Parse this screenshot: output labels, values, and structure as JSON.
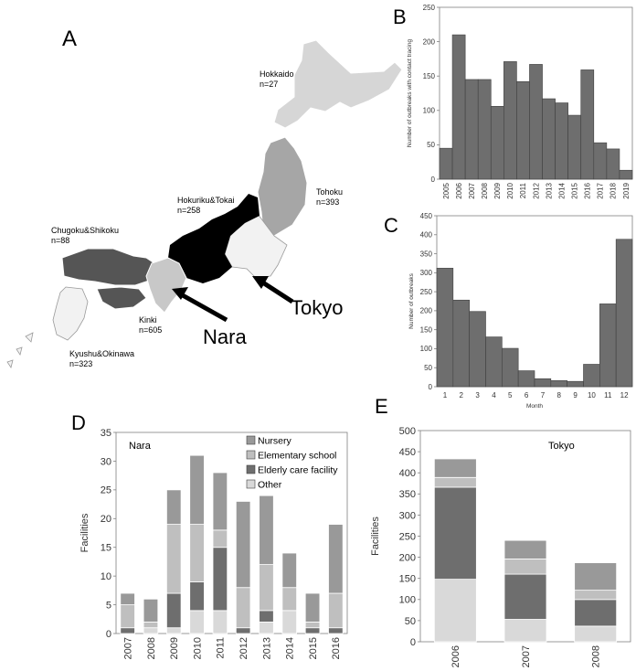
{
  "panels": {
    "A": "A",
    "B": "B",
    "C": "C",
    "D": "D",
    "E": "E"
  },
  "map": {
    "regions": [
      {
        "name": "Hokkaido",
        "count": "n=27",
        "color": "#d6d6d6"
      },
      {
        "name": "Tohoku",
        "count": "n=393",
        "color": "#a6a6a6"
      },
      {
        "name": "Hokuriku&Tokai",
        "count": "n=258",
        "color": "#000000"
      },
      {
        "name": "Chugoku&Shikoku",
        "count": "n=88",
        "color": "#555555"
      },
      {
        "name": "Kinki",
        "count": "n=605",
        "color": "#c8c8c8"
      },
      {
        "name": "Kyushu&Okinawa",
        "count": "n=323",
        "color": "#f2f2f2"
      },
      {
        "name": "Kanto",
        "count": "",
        "color": "#f2f2f2"
      }
    ],
    "callouts": {
      "nara": "Nara",
      "tokyo": "Tokyo"
    }
  },
  "chart_data": [
    {
      "id": "B",
      "type": "bar",
      "categories": [
        "2005",
        "2006",
        "2007",
        "2008",
        "2009",
        "2010",
        "2011",
        "2012",
        "2013",
        "2014",
        "2015",
        "2016",
        "2017",
        "2018",
        "2019"
      ],
      "values": [
        45,
        210,
        145,
        145,
        106,
        171,
        142,
        167,
        117,
        111,
        93,
        159,
        53,
        44,
        13
      ],
      "ylabel": "Number of outbreaks with contact tracing",
      "ylim": [
        0,
        250
      ],
      "yticks": [
        0,
        50,
        100,
        150,
        200,
        250
      ],
      "color": "#6e6e6e"
    },
    {
      "id": "C",
      "type": "bar",
      "categories": [
        "1",
        "2",
        "3",
        "4",
        "5",
        "6",
        "7",
        "8",
        "9",
        "10",
        "11",
        "12"
      ],
      "values": [
        312,
        228,
        198,
        131,
        101,
        42,
        21,
        16,
        14,
        59,
        218,
        388
      ],
      "xlabel": "Month",
      "ylabel": "Number of outbreaks",
      "ylim": [
        0,
        450
      ],
      "yticks": [
        0,
        50,
        100,
        150,
        200,
        250,
        300,
        350,
        400,
        450
      ],
      "color": "#6e6e6e"
    },
    {
      "id": "D",
      "type": "bar",
      "stacked": true,
      "title": "Nara",
      "categories": [
        "2007",
        "2008",
        "2009",
        "2010",
        "2011",
        "2012",
        "2013",
        "2014",
        "2015",
        "2016"
      ],
      "series": [
        {
          "name": "Other",
          "color": "#d9d9d9",
          "values": [
            0,
            1,
            1,
            4,
            4,
            0,
            2,
            4,
            0,
            0
          ]
        },
        {
          "name": "Elderly care facility",
          "color": "#6e6e6e",
          "values": [
            1,
            0,
            6,
            5,
            11,
            1,
            2,
            0,
            1,
            1
          ]
        },
        {
          "name": "Elementary school",
          "color": "#bfbfbf",
          "values": [
            4,
            1,
            12,
            10,
            3,
            7,
            8,
            4,
            1,
            6
          ]
        },
        {
          "name": "Nursery",
          "color": "#999999",
          "values": [
            2,
            4,
            6,
            12,
            10,
            15,
            12,
            6,
            5,
            12
          ]
        }
      ],
      "legend_order": [
        "Nursery",
        "Elementary school",
        "Elderly care facility",
        "Other"
      ],
      "ylabel": "Facilities",
      "ylim": [
        0,
        35
      ],
      "yticks": [
        0,
        5,
        10,
        15,
        20,
        25,
        30,
        35
      ]
    },
    {
      "id": "E",
      "type": "bar",
      "stacked": true,
      "title": "Tokyo",
      "categories": [
        "2006",
        "2007",
        "2008"
      ],
      "series": [
        {
          "name": "Other",
          "color": "#d9d9d9",
          "values": [
            148,
            53,
            37
          ]
        },
        {
          "name": "Elderly care facility",
          "color": "#6e6e6e",
          "values": [
            218,
            107,
            63
          ]
        },
        {
          "name": "Elementary school",
          "color": "#bfbfbf",
          "values": [
            23,
            36,
            22
          ]
        },
        {
          "name": "Nursery",
          "color": "#999999",
          "values": [
            44,
            44,
            65
          ]
        }
      ],
      "ylabel": "Facilities",
      "ylim": [
        0,
        500
      ],
      "yticks": [
        0,
        50,
        100,
        150,
        200,
        250,
        300,
        350,
        400,
        450,
        500
      ]
    }
  ]
}
